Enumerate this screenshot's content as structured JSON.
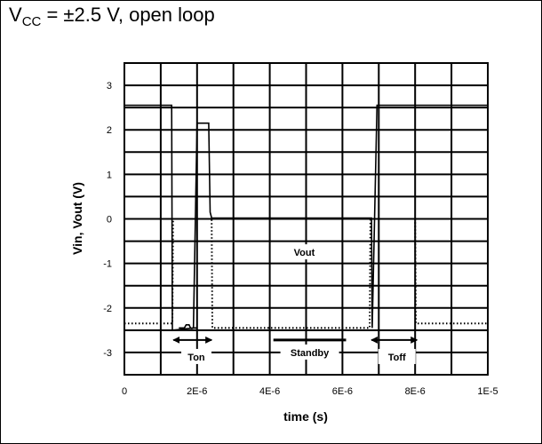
{
  "chart_data": {
    "type": "line",
    "title": {
      "prefix": "V",
      "sub": "CC",
      "suffix": " = ±2.5 V, open loop"
    },
    "xlabel": "time (s)",
    "ylabel": "Vin, Vout (V)",
    "xlim": [
      0,
      1e-05
    ],
    "ylim": [
      -3.5,
      3.5
    ],
    "x_ticks": [
      {
        "value": 0,
        "label": "0"
      },
      {
        "value": 2e-06,
        "label": "2E-6"
      },
      {
        "value": 4e-06,
        "label": "4E-6"
      },
      {
        "value": 6e-06,
        "label": "6E-6"
      },
      {
        "value": 8e-06,
        "label": "8E-6"
      },
      {
        "value": 1e-05,
        "label": "1E-5"
      }
    ],
    "y_ticks": [
      {
        "value": 3,
        "label": "3"
      },
      {
        "value": 2,
        "label": "2"
      },
      {
        "value": 1,
        "label": "1"
      },
      {
        "value": 0,
        "label": "0"
      },
      {
        "value": -1,
        "label": "-1"
      },
      {
        "value": -2,
        "label": "-2"
      },
      {
        "value": -3,
        "label": "-3"
      }
    ],
    "grid": true,
    "series": [
      {
        "id": "vin",
        "style": "solid",
        "color": "#000000",
        "x": [
          0,
          1.3e-06,
          1.32e-06,
          1.9e-06,
          2e-06,
          2.32e-06,
          2.36e-06,
          2.4e-06,
          4e-06,
          6.8e-06,
          6.82e-06,
          6.95e-06,
          1e-05
        ],
        "y": [
          2.55,
          2.55,
          -2.5,
          -2.45,
          2.15,
          2.15,
          0.15,
          0.02,
          0.02,
          0.02,
          -2.45,
          2.55,
          2.55
        ]
      },
      {
        "id": "vin-detail",
        "style": "solid",
        "color": "#000000",
        "x": [
          1.5e-06,
          1.65e-06,
          1.7e-06,
          1.78e-06,
          1.82e-06,
          1.85e-06,
          1.9e-06,
          2e-06
        ],
        "y": [
          -2.45,
          -2.45,
          -2.38,
          -2.38,
          -2.45,
          -2.46,
          -2.45,
          -2.45
        ]
      },
      {
        "id": "vout",
        "style": "dotted",
        "color": "#000000",
        "x": [
          0,
          1.32e-06,
          1.34e-06,
          2.4e-06,
          2.42e-06,
          6.75e-06,
          6.77e-06,
          8e-06,
          8.02e-06,
          1e-05
        ],
        "y": [
          -2.35,
          -2.35,
          0.0,
          0.0,
          -2.45,
          -2.45,
          0.0,
          0.0,
          -2.35,
          -2.35
        ]
      }
    ],
    "annotations": [
      {
        "text": "Ton",
        "x": 1.98e-06,
        "y": -3.1
      },
      {
        "text": "Standby",
        "x": 5.1e-06,
        "y": -3.0
      },
      {
        "text": "Toff",
        "x": 7.5e-06,
        "y": -3.1
      },
      {
        "text": "Vout",
        "x": 4.95e-06,
        "y": -0.75
      }
    ],
    "arrows": [
      {
        "x_from": 1.35e-06,
        "x_to": 2.4e-06,
        "y": -2.72
      },
      {
        "x_from": 6.8e-06,
        "x_to": 8.05e-06,
        "y": -2.72
      }
    ],
    "standby_bar": {
      "x_from": 4.1e-06,
      "x_to": 6.1e-06,
      "y": -2.72
    }
  }
}
